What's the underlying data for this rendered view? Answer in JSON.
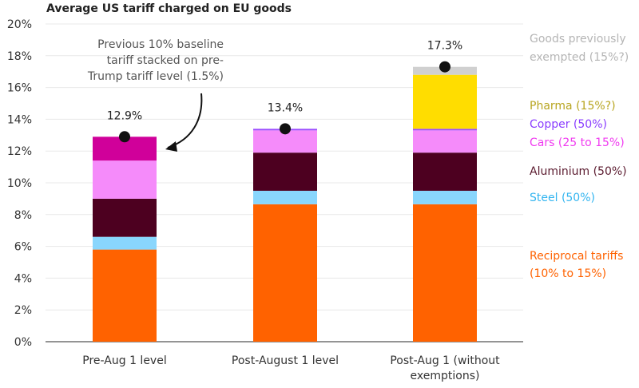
{
  "chart_data": {
    "type": "bar",
    "stacked": true,
    "title": "Average US tariff charged on EU goods",
    "ylim": [
      0,
      20
    ],
    "yticks": [
      "0%",
      "2%",
      "4%",
      "6%",
      "8%",
      "10%",
      "12%",
      "14%",
      "16%",
      "18%",
      "20%"
    ],
    "grid": true,
    "categories": [
      [
        "Pre-Aug 1 level"
      ],
      [
        "Post-August 1 level"
      ],
      [
        "Post-Aug 1 (without",
        "exemptions)"
      ]
    ],
    "totals": [
      "12.9%",
      "13.4%",
      "17.3%"
    ],
    "total_values": [
      12.9,
      13.4,
      17.3
    ],
    "series": [
      {
        "name": "Reciprocal tariffs (10% to 15%)",
        "label_lines": [
          "Reciprocal tariffs",
          "(10% to 15%)"
        ],
        "color": "#FF6200",
        "label_color": "#FF6200",
        "values": [
          5.8,
          8.65,
          8.65
        ]
      },
      {
        "name": "Steel (50%)",
        "label_lines": [
          "Steel (50%)"
        ],
        "color": "#89D6FD",
        "label_color": "#33B5F0",
        "values": [
          0.8,
          0.85,
          0.85
        ]
      },
      {
        "name": "Aluminium (50%)",
        "label_lines": [
          "Aluminium (50%)"
        ],
        "color": "#4D0020",
        "label_color": "#5A1A2E",
        "values": [
          2.4,
          2.4,
          2.4
        ]
      },
      {
        "name": "Cars (25 to 15%)",
        "label_lines": [
          "Cars (25 to 15%)"
        ],
        "color": "#F58BFA",
        "label_color": "#F03BF0",
        "values": [
          2.4,
          1.4,
          1.4
        ]
      },
      {
        "name": "Copper (50%)",
        "label_lines": [
          "Copper (50%)"
        ],
        "color": "#9B4DFF",
        "label_color": "#8A3DFF",
        "values": [
          0,
          0.1,
          0.1
        ]
      },
      {
        "name": "Pharma (15%?)",
        "label_lines": [
          "Pharma (15%?)"
        ],
        "color": "#FFDD00",
        "label_color": "#B8A520",
        "values": [
          0,
          0,
          3.4
        ]
      },
      {
        "name": "Goods previously exempted (15%?)",
        "label_lines": [
          "Goods previously",
          "exempted (15%?)"
        ],
        "color": "#D0D0D0",
        "label_color": "#B5B5B5",
        "values": [
          0,
          0,
          0.5
        ]
      },
      {
        "name": "",
        "color": "#D0009A",
        "values": [
          1.5,
          0,
          0
        ]
      }
    ],
    "annotation": [
      "Previous 10% baseline",
      "tariff stacked on pre-",
      "Trump tariff level (1.5%)"
    ]
  }
}
